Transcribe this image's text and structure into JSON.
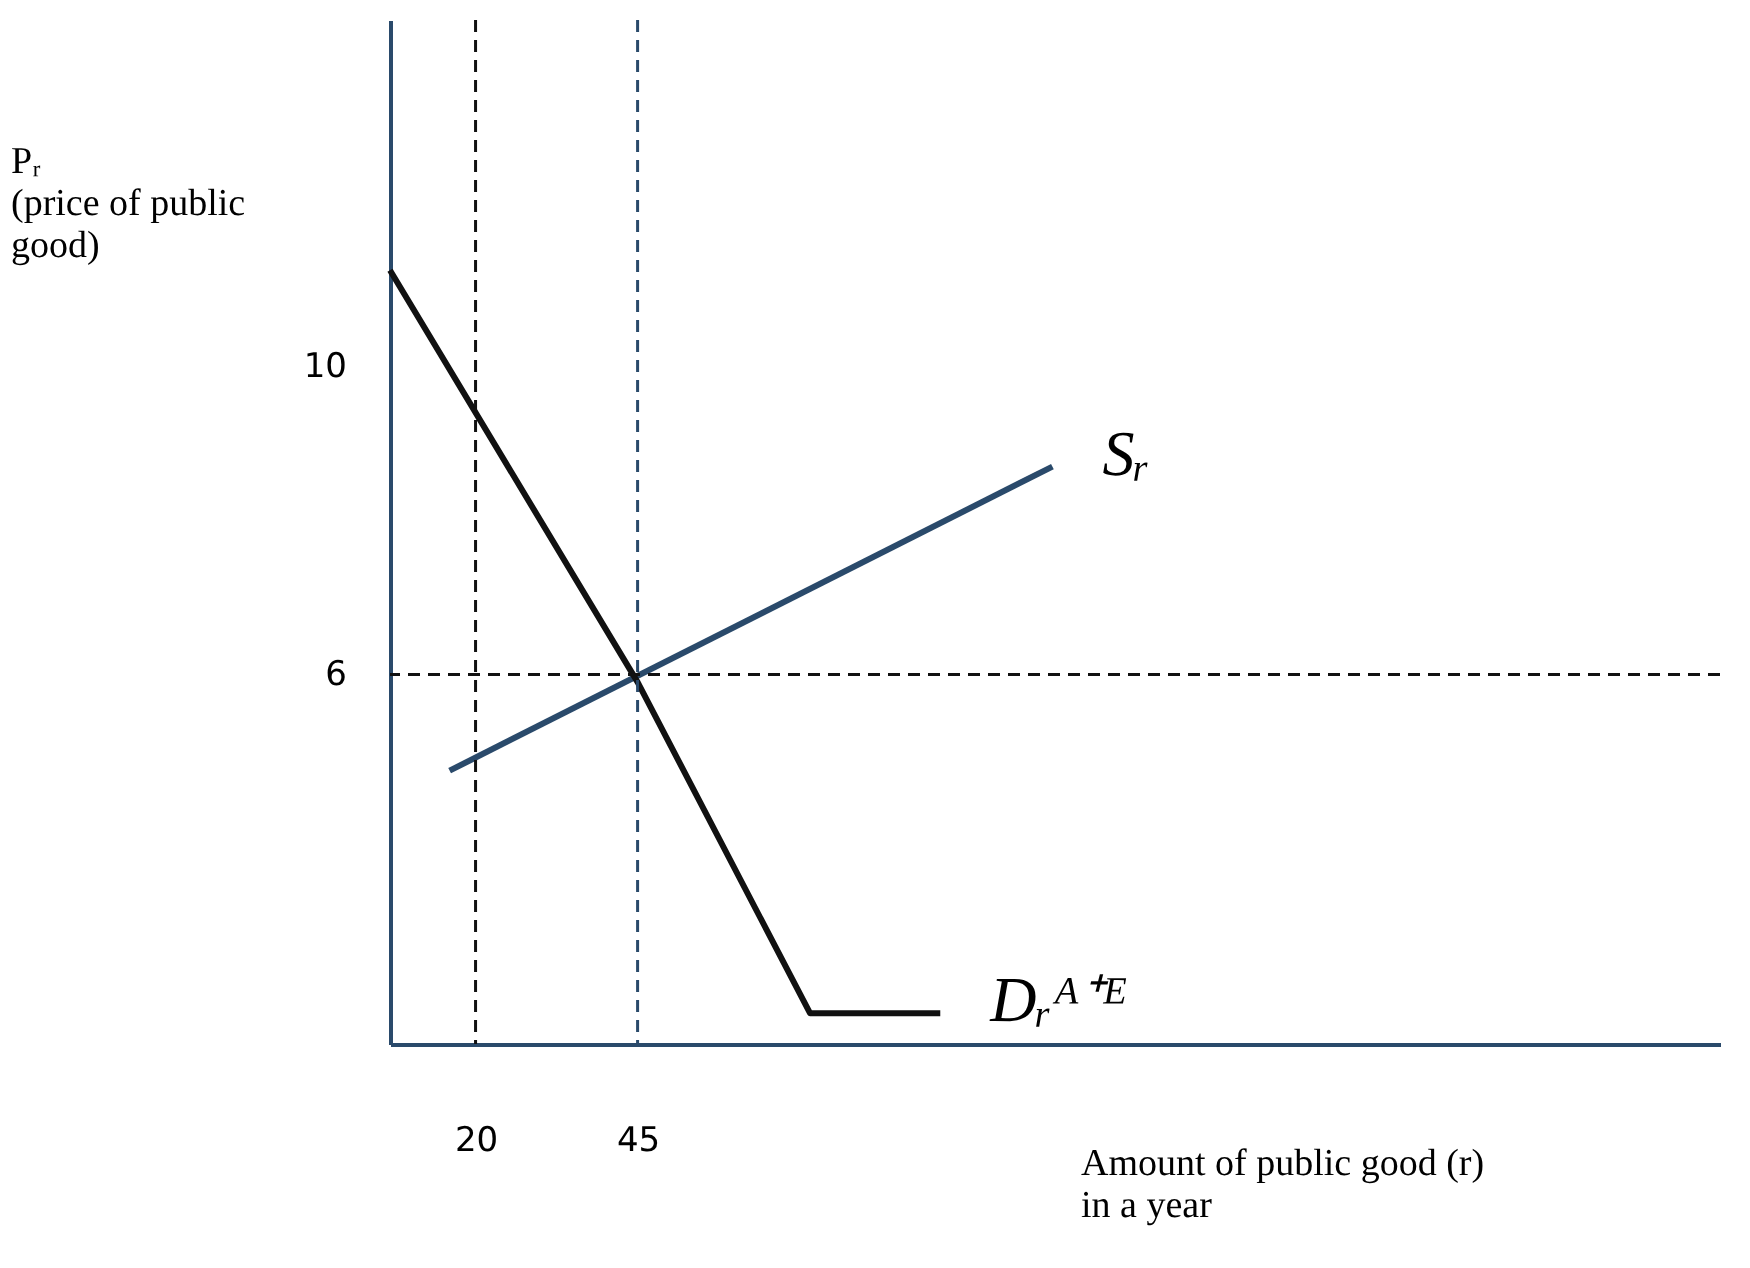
{
  "chart_data": {
    "type": "line",
    "xlabel": "Amount of public good (r)\nin a year",
    "ylabel": "Pᵣ\n(price of public\ngood)",
    "xlim": [
      6.8,
      212
    ],
    "ylim": [
      1.2,
      14.5
    ],
    "xticks": [
      20,
      45
    ],
    "yticks": [
      6,
      10
    ],
    "grid": false,
    "line_style": "solid",
    "marker": "none",
    "series": [
      {
        "name": "Sᵣ",
        "color": "#2a4a6b",
        "x": [
          16,
          109
        ],
        "values": [
          4.75,
          8.7
        ]
      },
      {
        "name": "Dᵣᴬ⁺ᴱ",
        "color": "#111111",
        "x": [
          6.8,
          45,
          71.6,
          91.7
        ],
        "values": [
          11.25,
          5.9,
          1.6,
          1.6
        ]
      }
    ],
    "ref_lines": [
      {
        "axis": "x",
        "value": 20,
        "color": "#111111",
        "line_style": "dashed"
      },
      {
        "axis": "x",
        "value": 45,
        "color": "#2a4a6b",
        "line_style": "dashed"
      },
      {
        "axis": "y",
        "value": 6,
        "color": "#111111",
        "line_style": "dashed"
      }
    ]
  }
}
